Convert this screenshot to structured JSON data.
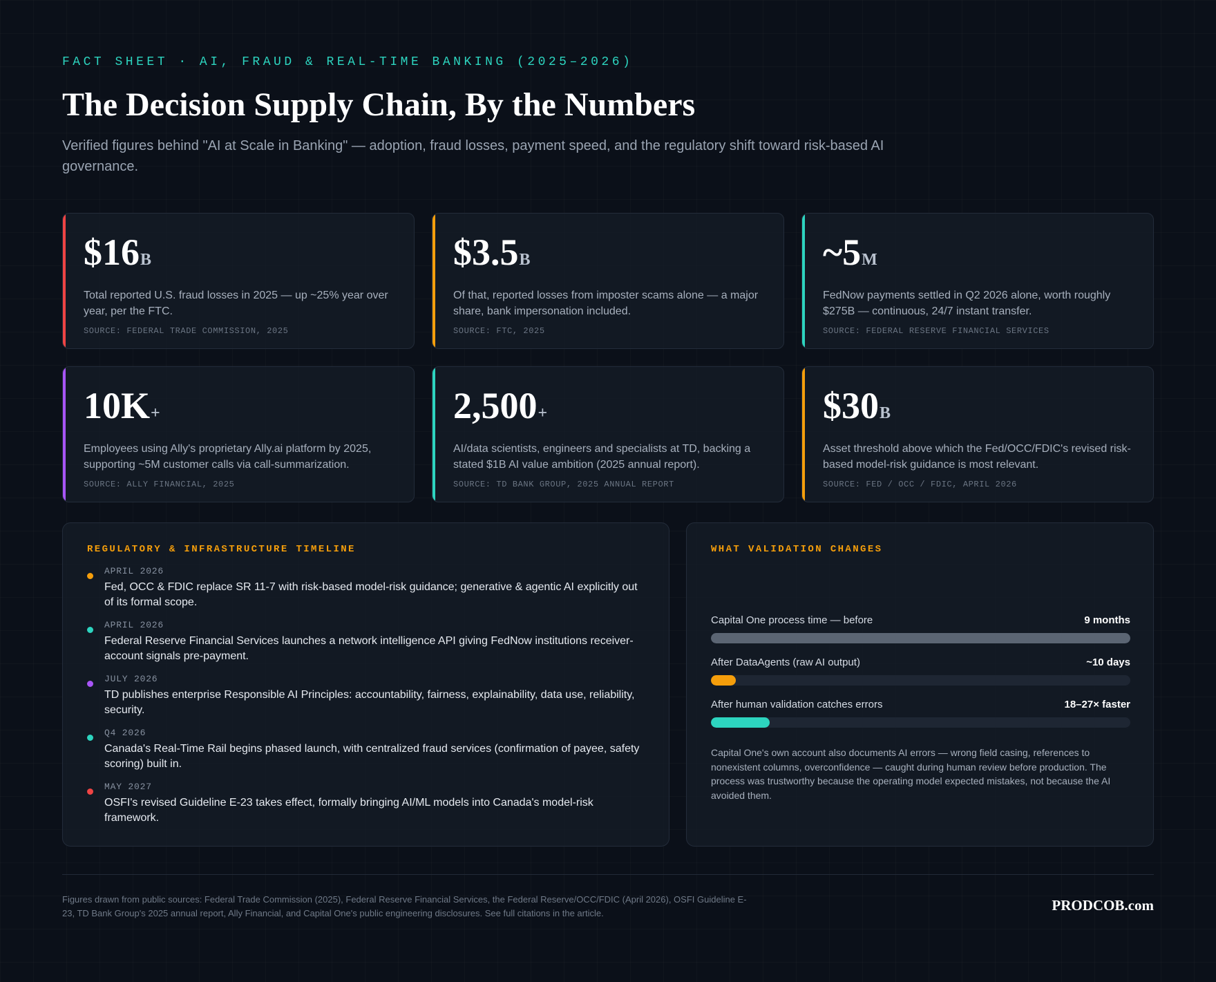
{
  "header": {
    "eyebrow": "FACT SHEET · AI, FRAUD & REAL-TIME BANKING (2025–2026)",
    "title": "The Decision Supply Chain, By the Numbers",
    "subtitle": "Verified figures behind \"AI at Scale in Banking\" — adoption, fraud losses, payment speed, and the regulatory shift toward risk-based AI governance."
  },
  "stats": [
    {
      "value": "$16",
      "unit": "B",
      "desc": "Total reported U.S. fraud losses in 2025 — up ~25% year over year, per the FTC.",
      "source": "SOURCE: FEDERAL TRADE COMMISSION, 2025",
      "accent": "#ef4444"
    },
    {
      "value": "$3.5",
      "unit": "B",
      "desc": "Of that, reported losses from imposter scams alone — a major share, bank impersonation included.",
      "source": "SOURCE: FTC, 2025",
      "accent": "#f59e0b"
    },
    {
      "value": "~5",
      "unit": "M",
      "desc": "FedNow payments settled in Q2 2026 alone, worth roughly $275B — continuous, 24/7 instant transfer.",
      "source": "SOURCE: FEDERAL RESERVE FINANCIAL SERVICES",
      "accent": "#2dd4bf"
    },
    {
      "value": "10K",
      "unit": "+",
      "desc": "Employees using Ally's proprietary Ally.ai platform by 2025, supporting ~5M customer calls via call-summarization.",
      "source": "SOURCE: ALLY FINANCIAL, 2025",
      "accent": "#a855f7"
    },
    {
      "value": "2,500",
      "unit": "+",
      "desc": "AI/data scientists, engineers and specialists at TD, backing a stated $1B AI value ambition (2025 annual report).",
      "source": "SOURCE: TD BANK GROUP, 2025 ANNUAL REPORT",
      "accent": "#2dd4bf"
    },
    {
      "value": "$30",
      "unit": "B",
      "desc": "Asset threshold above which the Fed/OCC/FDIC's revised risk-based model-risk guidance is most relevant.",
      "source": "SOURCE: FED / OCC / FDIC, APRIL 2026",
      "accent": "#f59e0b"
    }
  ],
  "timeline": {
    "title": "REGULATORY & INFRASTRUCTURE TIMELINE",
    "items": [
      {
        "date": "APRIL 2026",
        "text": "Fed, OCC & FDIC replace SR 11-7 with risk-based model-risk guidance; generative & agentic AI explicitly out of its formal scope.",
        "color": "#f59e0b"
      },
      {
        "date": "APRIL 2026",
        "text": "Federal Reserve Financial Services launches a network intelligence API giving FedNow institutions receiver-account signals pre-payment.",
        "color": "#2dd4bf"
      },
      {
        "date": "JULY 2026",
        "text": "TD publishes enterprise Responsible AI Principles: accountability, fairness, explainability, data use, reliability, security.",
        "color": "#a855f7"
      },
      {
        "date": "Q4 2026",
        "text": "Canada's Real-Time Rail begins phased launch, with centralized fraud services (confirmation of payee, safety scoring) built in.",
        "color": "#2dd4bf"
      },
      {
        "date": "MAY 2027",
        "text": "OSFI's revised Guideline E-23 takes effect, formally bringing AI/ML models into Canada's model-risk framework.",
        "color": "#ef4444"
      }
    ]
  },
  "validation": {
    "title": "WHAT VALIDATION CHANGES",
    "bars": [
      {
        "label": "Capital One process time — before",
        "value": "9 months",
        "fraction": 1.0,
        "color": "#5b6573"
      },
      {
        "label": "After DataAgents (raw AI output)",
        "value": "~10 days",
        "fraction": 0.06,
        "color": "#f59e0b"
      },
      {
        "label": "After human validation catches errors",
        "value": "18–27× faster",
        "fraction": 0.14,
        "color": "#2dd4bf"
      }
    ],
    "note": "Capital One's own account also documents AI errors — wrong field casing, references to nonexistent columns, overconfidence — caught during human review before production. The process was trustworthy because the operating model expected mistakes, not because the AI avoided them."
  },
  "footer": {
    "note": "Figures drawn from public sources: Federal Trade Commission (2025), Federal Reserve Financial Services, the Federal Reserve/OCC/FDIC (April 2026), OSFI Guideline E-23, TD Bank Group's 2025 annual report, Ally Financial, and Capital One's public engineering disclosures. See full citations in the article.",
    "brand": "PRODCOB.com"
  }
}
